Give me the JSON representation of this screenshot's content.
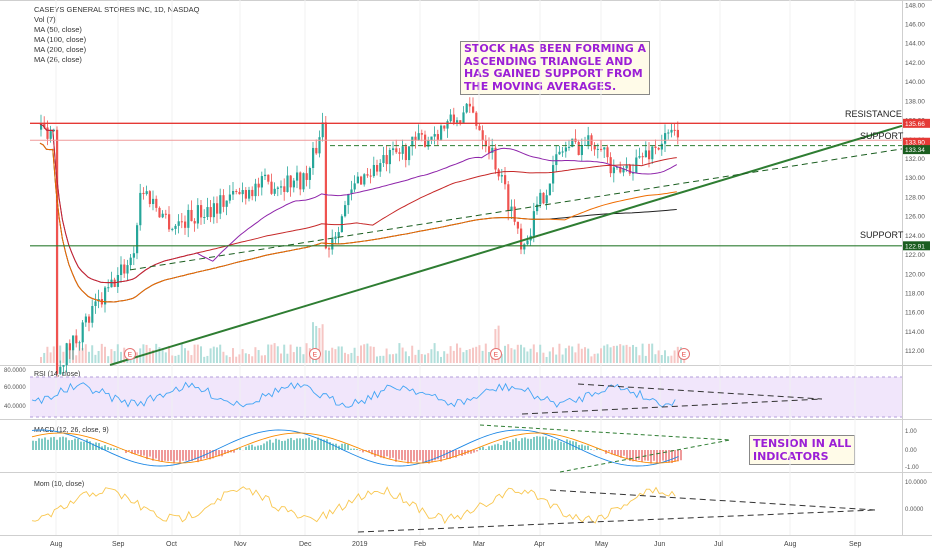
{
  "header": {
    "symbol_line": "CASEYS GENERAL STORES INC, 1D, NASDAQ",
    "indicators": [
      "Vol (7)",
      "MA (50, close)",
      "MA (100, close)",
      "MA (200, close)",
      "MA (26, close)"
    ]
  },
  "annotations": {
    "triangle_note_lines": [
      "STOCK HAS BEEN FORMING A",
      "ASCENDING TRIANGLE AND",
      "HAS GAINED SUPPORT FROM",
      "THE MOVING AVERAGES."
    ],
    "tension_note_lines": [
      "TENSION IN ALL",
      "INDICATORS"
    ],
    "resistance": "RESISTANCE",
    "support_upper": "SUPPORT",
    "support_lower": "SUPPORT"
  },
  "colors": {
    "up": "#26a69a",
    "down": "#ef5350",
    "resistance": "#e53935",
    "support": "#2e7d32",
    "ma50": "#8e24aa",
    "ma100": "#c62828",
    "ma200": "#212121",
    "ma26": "#ef6c00",
    "rsi": "#42a5f5",
    "mom": "#f9c74f"
  },
  "panes": {
    "rsi_label": "RSI (14, close)",
    "macd_label": "MACD (12, 26, close, 9)",
    "mom_label": "Mom (10, close)"
  },
  "chart_data": {
    "type": "candlestick",
    "title": "CASEYS GENERAL STORES INC, 1D, NASDAQ",
    "x_axis": {
      "tick_labels": [
        "Aug",
        "Sep",
        "Oct",
        "Nov",
        "Dec",
        "2019",
        "Feb",
        "Mar",
        "Apr",
        "May",
        "Jun",
        "Jul",
        "Aug",
        "Sep"
      ]
    },
    "price_axis": {
      "range": [
        110.5,
        148.5
      ],
      "tick_labels": [
        "112.00",
        "114.00",
        "116.00",
        "118.00",
        "120.00",
        "122.00",
        "124.00",
        "126.00",
        "128.00",
        "130.00",
        "132.00",
        "134.00",
        "136.00",
        "138.00",
        "140.00",
        "142.00",
        "144.00",
        "146.00",
        "148.00"
      ]
    },
    "price_badges": [
      {
        "value": "135.66",
        "color": "#e53935"
      },
      {
        "value": "133.90",
        "color": "#e53935"
      },
      {
        "value": "133.34",
        "color": "#1b5e20"
      },
      {
        "value": "122.91",
        "color": "#1b5e20"
      }
    ],
    "levels": {
      "resistance": 135.66,
      "support_upper": 133.34,
      "support_lower": 122.91
    },
    "price_path": [
      {
        "month": "Aug",
        "price": 110.5
      },
      {
        "month": "Sep",
        "price": 122
      },
      {
        "month": "Sep",
        "price": 129
      },
      {
        "month": "Oct",
        "price": 125
      },
      {
        "month": "Nov",
        "price": 129
      },
      {
        "month": "Dec",
        "price": 130
      },
      {
        "month": "Dec",
        "price": 136
      },
      {
        "month": "Dec",
        "price": 121
      },
      {
        "month": "2019",
        "price": 130
      },
      {
        "month": "Feb",
        "price": 137
      },
      {
        "month": "Mar",
        "price": 133
      },
      {
        "month": "Mar",
        "price": 123
      },
      {
        "month": "Apr",
        "price": 133
      },
      {
        "month": "May",
        "price": 134
      },
      {
        "month": "May",
        "price": 130
      },
      {
        "month": "Jun",
        "price": 135
      }
    ],
    "rsi_axis": [
      "80.0000",
      "60.0000",
      "40.0000"
    ],
    "macd_axis": [
      "1.00",
      "0.00",
      "-1.00"
    ],
    "mom_axis": [
      "10.0000",
      "0.0000"
    ],
    "event_markers": [
      {
        "label": "E",
        "month": "Sep"
      },
      {
        "label": "E",
        "month": "Dec"
      },
      {
        "label": "E",
        "month": "Mar"
      },
      {
        "label": "E",
        "month": "Jun"
      }
    ]
  }
}
